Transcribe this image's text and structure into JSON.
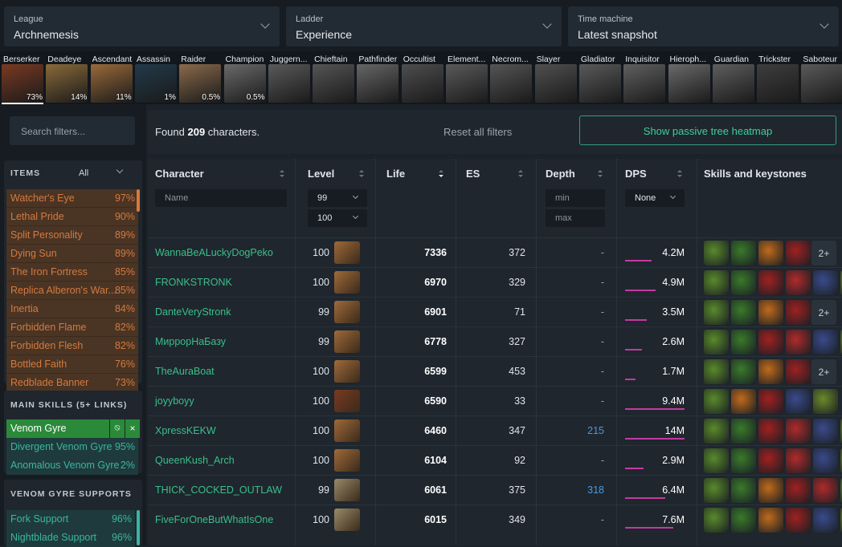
{
  "filters": {
    "league": {
      "label": "League",
      "value": "Archnemesis"
    },
    "ladder": {
      "label": "Ladder",
      "value": "Experience"
    },
    "time": {
      "label": "Time machine",
      "value": "Latest snapshot"
    }
  },
  "ascendancies": [
    {
      "name": "Berserker",
      "pct": "73%",
      "color": "#7a3a22",
      "selected": true
    },
    {
      "name": "Deadeye",
      "pct": "14%",
      "color": "#8a6a3a"
    },
    {
      "name": "Ascendant",
      "pct": "11%",
      "color": "#9a6a3a"
    },
    {
      "name": "Assassin",
      "pct": "1%",
      "color": "#223a4a"
    },
    {
      "name": "Raider",
      "pct": "0.5%",
      "color": "#8a6a4a"
    },
    {
      "name": "Champion",
      "pct": "0.5%",
      "color": "#6a6a6a"
    },
    {
      "name": "Juggern...",
      "pct": "",
      "color": "#5a5a5a"
    },
    {
      "name": "Chieftain",
      "pct": "",
      "color": "#555555"
    },
    {
      "name": "Pathfinder",
      "pct": "",
      "color": "#666666"
    },
    {
      "name": "Occultist",
      "pct": "",
      "color": "#4e4e4e"
    },
    {
      "name": "Element...",
      "pct": "",
      "color": "#5a5a5a"
    },
    {
      "name": "Necrom...",
      "pct": "",
      "color": "#555555"
    },
    {
      "name": "Slayer",
      "pct": "",
      "color": "#505050"
    },
    {
      "name": "Gladiator",
      "pct": "",
      "color": "#5a5a5a"
    },
    {
      "name": "Inquisitor",
      "pct": "",
      "color": "#606060"
    },
    {
      "name": "Hieroph...",
      "pct": "",
      "color": "#6a6a6a"
    },
    {
      "name": "Guardian",
      "pct": "",
      "color": "#5e5e5e"
    },
    {
      "name": "Trickster",
      "pct": "",
      "color": "#3e3e3e"
    },
    {
      "name": "Saboteur",
      "pct": "",
      "color": "#5a5a5a"
    }
  ],
  "search": {
    "placeholder": "Search filters..."
  },
  "found": {
    "prefix": "Found ",
    "count": "209",
    "suffix": " characters."
  },
  "reset_label": "Reset all filters",
  "heatmap_label": "Show passive tree heatmap",
  "items_panel": {
    "title": "ITEMS",
    "filter": "All",
    "rows": [
      {
        "name": "Watcher's Eye",
        "pct": "97%"
      },
      {
        "name": "Lethal Pride",
        "pct": "90%"
      },
      {
        "name": "Split Personality",
        "pct": "89%"
      },
      {
        "name": "Dying Sun",
        "pct": "89%"
      },
      {
        "name": "The Iron Fortress",
        "pct": "85%"
      },
      {
        "name": "Replica Alberon's War...",
        "pct": "85%"
      },
      {
        "name": "Inertia",
        "pct": "84%"
      },
      {
        "name": "Forbidden Flame",
        "pct": "82%"
      },
      {
        "name": "Forbidden Flesh",
        "pct": "82%"
      },
      {
        "name": "Bottled Faith",
        "pct": "76%"
      },
      {
        "name": "Redblade Banner",
        "pct": "73%"
      }
    ]
  },
  "main_skills": {
    "title": "MAIN SKILLS (5+ LINKS)",
    "selected": "Venom Gyre",
    "rows": [
      {
        "name": "Divergent Venom Gyre",
        "pct": "95%"
      },
      {
        "name": "Anomalous Venom Gyre",
        "pct": "2%"
      }
    ]
  },
  "supports": {
    "title": "VENOM GYRE SUPPORTS",
    "rows": [
      {
        "name": "Fork Support",
        "pct": "96%"
      },
      {
        "name": "Nightblade Support",
        "pct": "96%"
      }
    ]
  },
  "table": {
    "headers": {
      "character": "Character",
      "level": "Level",
      "life": "Life",
      "es": "ES",
      "depth": "Depth",
      "dps": "DPS",
      "skills": "Skills and keystones"
    },
    "name_placeholder": "Name",
    "level_min": "99",
    "level_max": "100",
    "depth_min": "min",
    "depth_max": "max",
    "dps_filter": "None",
    "rows": [
      {
        "name": "WannaBeALuckyDogPeko",
        "level": "100",
        "life": "7336",
        "es": "372",
        "depth": "-",
        "dps": "4.2M",
        "dps_frac": 0.45,
        "portrait": "#a06a3a",
        "skills": [
          "#5a8a2a",
          "#3a7a2a",
          "#c06a1a",
          "#a02020"
        ],
        "more": "2+"
      },
      {
        "name": "FRONKSTRONK",
        "level": "100",
        "life": "6970",
        "es": "329",
        "depth": "-",
        "dps": "4.9M",
        "dps_frac": 0.52,
        "portrait": "#a06a3a",
        "skills": [
          "#5a8a2a",
          "#3a7a2a",
          "#a02020",
          "#b02a2a",
          "#3a4a8a",
          "#6a8a2a"
        ],
        "more": ""
      },
      {
        "name": "DanteVeryStronk",
        "level": "99",
        "life": "6901",
        "es": "71",
        "depth": "-",
        "dps": "3.5M",
        "dps_frac": 0.37,
        "portrait": "#a06a3a",
        "skills": [
          "#5a8a2a",
          "#3a7a2a",
          "#c06a1a",
          "#a02020"
        ],
        "more": "2+"
      },
      {
        "name": "МиррорНаБазу",
        "level": "99",
        "life": "6778",
        "es": "327",
        "depth": "-",
        "dps": "2.6M",
        "dps_frac": 0.28,
        "portrait": "#a06a3a",
        "skills": [
          "#5a8a2a",
          "#3a7a2a",
          "#a02020",
          "#b02a2a",
          "#3a4a8a",
          "#6a8a2a"
        ],
        "more": ""
      },
      {
        "name": "TheAuraBoat",
        "level": "100",
        "life": "6599",
        "es": "453",
        "depth": "-",
        "dps": "1.7M",
        "dps_frac": 0.18,
        "portrait": "#a06a3a",
        "skills": [
          "#5a8a2a",
          "#3a7a2a",
          "#c06a1a",
          "#a02020"
        ],
        "more": "2+"
      },
      {
        "name": "joyyboyy",
        "level": "100",
        "life": "6590",
        "es": "33",
        "depth": "-",
        "dps": "9.4M",
        "dps_frac": 1.0,
        "portrait": "#7a3a22",
        "skills": [
          "#5a8a2a",
          "#c06a1a",
          "#a02020",
          "#3a4a8a",
          "#6a8a2a"
        ],
        "more": ""
      },
      {
        "name": "XpressKEKW",
        "level": "100",
        "life": "6460",
        "es": "347",
        "depth": "215",
        "dps": "14M",
        "dps_frac": 1.0,
        "portrait": "#a06a3a",
        "skills": [
          "#5a8a2a",
          "#3a7a2a",
          "#a02020",
          "#b02a2a",
          "#3a4a8a",
          "#6a8a2a"
        ],
        "more": ""
      },
      {
        "name": "QueenKush_Arch",
        "level": "100",
        "life": "6104",
        "es": "92",
        "depth": "-",
        "dps": "2.9M",
        "dps_frac": 0.31,
        "portrait": "#a06a3a",
        "skills": [
          "#5a8a2a",
          "#3a7a2a",
          "#a02020",
          "#b02a2a",
          "#3a4a8a",
          "#6a8a2a"
        ],
        "more": ""
      },
      {
        "name": "THICK_COCKED_OUTLAW",
        "level": "99",
        "life": "6061",
        "es": "375",
        "depth": "318",
        "dps": "6.4M",
        "dps_frac": 0.68,
        "portrait": "#9a8a6a",
        "skills": [
          "#5a8a2a",
          "#3a7a2a",
          "#c06a1a",
          "#a02020",
          "#b02a2a",
          "#6a8a2a"
        ],
        "more": ""
      },
      {
        "name": "FiveForOneButWhatIsOne",
        "level": "100",
        "life": "6015",
        "es": "349",
        "depth": "-",
        "dps": "7.6M",
        "dps_frac": 0.81,
        "portrait": "#9a8a6a",
        "skills": [
          "#5a8a2a",
          "#3a7a2a",
          "#c06a1a",
          "#a02020",
          "#3a4a8a",
          "#6a8a2a"
        ],
        "more": ""
      }
    ]
  }
}
